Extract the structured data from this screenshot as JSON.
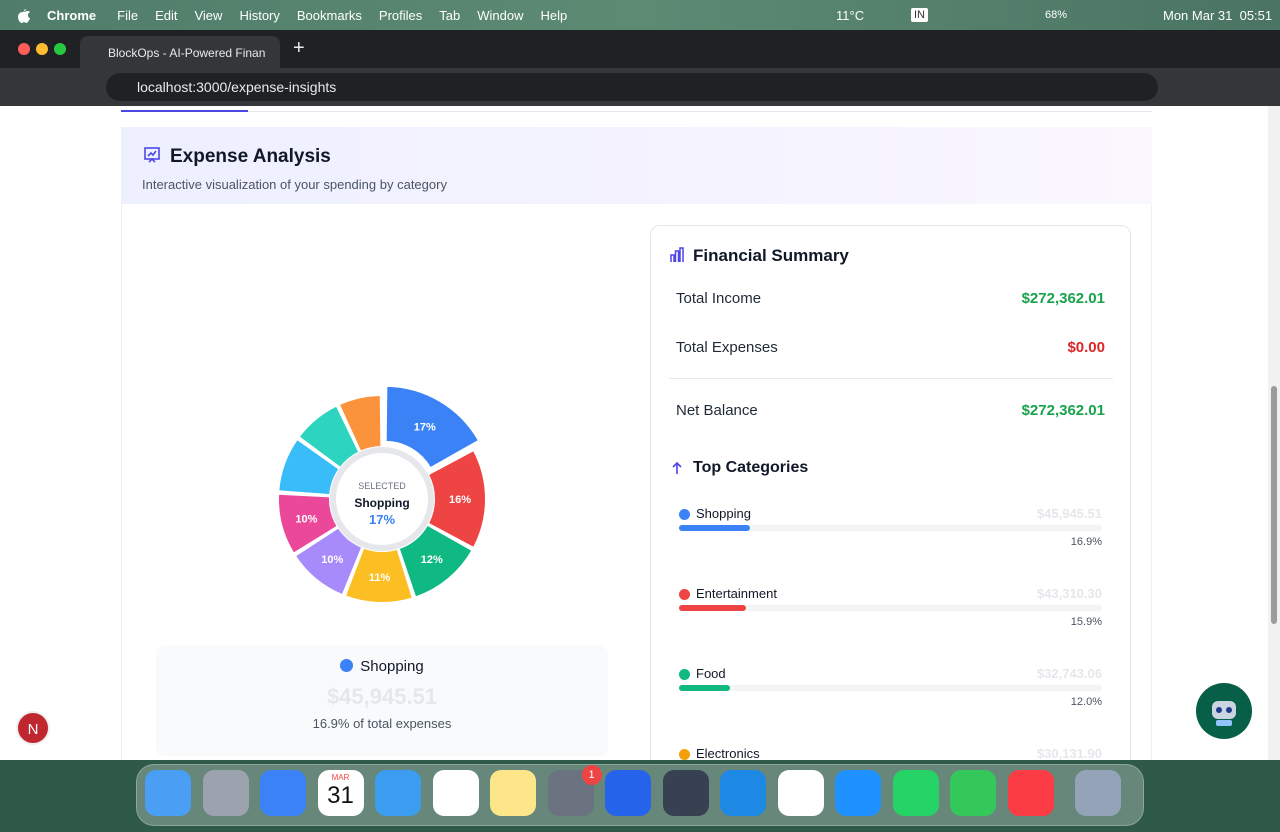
{
  "menubar": {
    "app": "Chrome",
    "items": [
      "File",
      "Edit",
      "View",
      "History",
      "Bookmarks",
      "Profiles",
      "Tab",
      "Window",
      "Help"
    ],
    "temperature": "11°C",
    "input": "IN",
    "battery": "68%",
    "datetime": "Mon Mar 31  05:51"
  },
  "browser": {
    "tab_title": "BlockOps - AI-Powered Finan",
    "url": "localhost:3000/expense-insights"
  },
  "header": {
    "title": "Expense Analysis",
    "subtitle": "Interactive visualization of your spending by category"
  },
  "chart_data": {
    "type": "donut",
    "values": [
      17,
      16,
      12,
      11,
      10,
      10,
      9,
      8,
      7
    ],
    "value_labels": [
      "17%",
      "16%",
      "12%",
      "11%",
      "10%",
      "10%",
      null,
      null,
      null
    ],
    "colors": [
      "#3b82f6",
      "#ef4444",
      "#10b981",
      "#fbbf24",
      "#a78bfa",
      "#ec4899",
      "#38bdf8",
      "#2dd4bf",
      "#fb923c"
    ],
    "center": {
      "caption": "SELECTED",
      "name": "Shopping",
      "value_label": "17%"
    }
  },
  "selected": {
    "name": "Shopping",
    "amount": "$45,945.51",
    "note": "16.9% of total expenses"
  },
  "summary": {
    "title": "Financial Summary",
    "rows": [
      {
        "label": "Total Income",
        "value": "$272,362.01",
        "color": "#16a34a"
      },
      {
        "label": "Total Expenses",
        "value": "$0.00",
        "color": "#dc2626"
      },
      {
        "label": "Net Balance",
        "value": "$272,362.01",
        "color": "#16a34a"
      }
    ]
  },
  "top_categories": {
    "title": "Top Categories",
    "items": [
      {
        "name": "Shopping",
        "color": "#3b82f6",
        "amount": "$45,945.51",
        "percent": 16.9,
        "percent_label": "16.9%"
      },
      {
        "name": "Entertainment",
        "color": "#ef4444",
        "amount": "$43,310.30",
        "percent": 15.9,
        "percent_label": "15.9%"
      },
      {
        "name": "Food",
        "color": "#10b981",
        "amount": "$32,743.06",
        "percent": 12.0,
        "percent_label": "12.0%"
      },
      {
        "name": "Electronics",
        "color": "#f59e0b",
        "amount": "$30,131.90"
      }
    ]
  },
  "dock": {
    "calendar_month": "MAR",
    "calendar_day": "31",
    "badge": "1"
  },
  "avatar": "N"
}
